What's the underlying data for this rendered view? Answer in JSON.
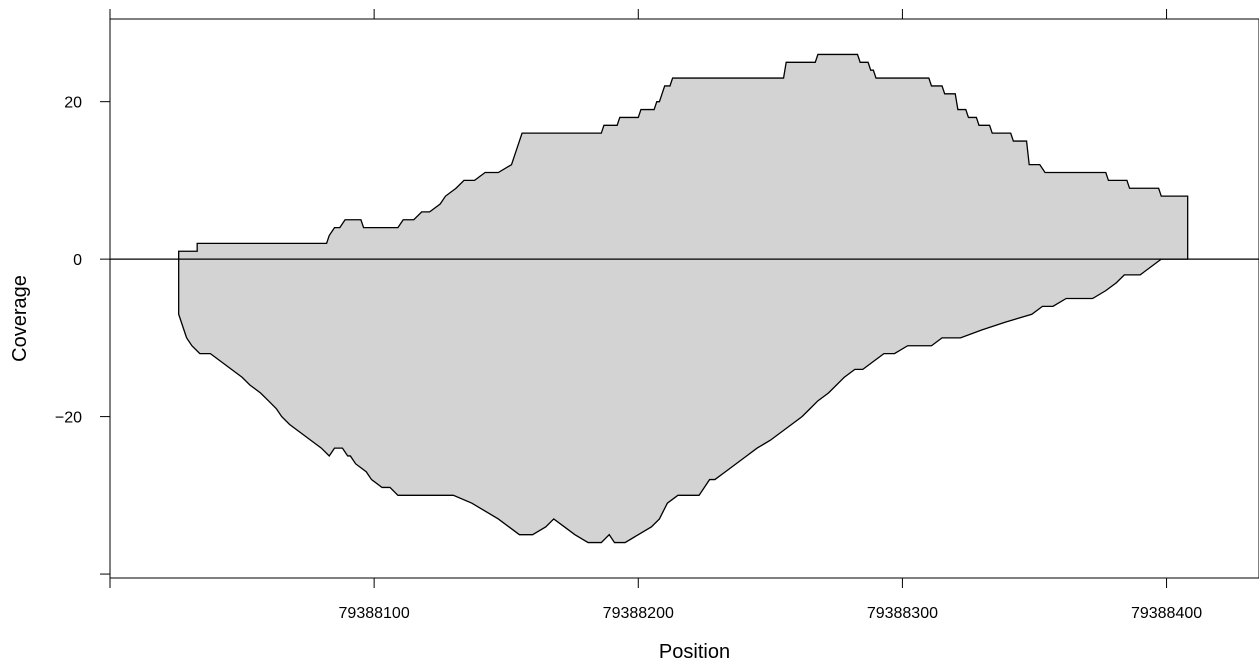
{
  "chart_data": {
    "type": "area",
    "title": "",
    "xlabel": "Position",
    "ylabel": "Coverage",
    "xlim": [
      79388000,
      79388435
    ],
    "ylim": [
      -40.5,
      30.5
    ],
    "x_ticks": [
      79388000,
      79388100,
      79388200,
      79388300,
      79388400
    ],
    "x_tick_labels": [
      "",
      "79388100",
      "79388200",
      "79388300",
      "79388400"
    ],
    "y_ticks": [
      -40,
      -20,
      0,
      20
    ],
    "y_tick_labels": [
      "",
      "−20",
      "0",
      "20"
    ],
    "zero_line": true,
    "grid": false,
    "legend": "none",
    "colors": {
      "fill": "#d3d3d3",
      "stroke": "#000000"
    },
    "series": [
      {
        "x": [
          79388026,
          79388026,
          79388033,
          79388033,
          79388082,
          79388083,
          79388085,
          79388087,
          79388089,
          79388095,
          79388096,
          79388109,
          79388111,
          79388115,
          79388118,
          79388121,
          79388125,
          79388127,
          79388131,
          79388134,
          79388138,
          79388142,
          79388147,
          79388152,
          79388156,
          79388186,
          79388187,
          79388192,
          79388193,
          79388200,
          79388201,
          79388206,
          79388207,
          79388208,
          79388209,
          79388210,
          79388212,
          79388213,
          79388214,
          79388215,
          79388255,
          79388256,
          79388267,
          79388268,
          79388283,
          79388284,
          79388287,
          79388288,
          79388289,
          79388290,
          79388310,
          79388311,
          79388315,
          79388316,
          79388320,
          79388321,
          79388324,
          79388325,
          79388328,
          79388329,
          79388333,
          79388334,
          79388336,
          79388337,
          79388341,
          79388342,
          79388347,
          79388348,
          79388352,
          79388354,
          79388356,
          79388377,
          79388378,
          79388385,
          79388386,
          79388392,
          79388393,
          79388397,
          79388398,
          79388408,
          79388408
        ],
        "top": [
          0,
          1,
          1,
          2,
          2,
          3,
          4,
          4,
          5,
          5,
          4,
          4,
          5,
          5,
          6,
          6,
          7,
          8,
          9,
          10,
          10,
          11,
          11,
          12,
          16,
          16,
          17,
          17,
          18,
          18,
          19,
          19,
          20,
          20,
          21,
          22,
          22,
          23,
          23,
          23,
          23,
          25,
          25,
          26,
          26,
          25,
          25,
          24,
          24,
          23,
          23,
          22,
          22,
          21,
          21,
          19,
          19,
          18,
          18,
          17,
          17,
          16,
          16,
          16,
          16,
          15,
          15,
          12,
          12,
          11,
          11,
          11,
          10,
          10,
          9,
          9,
          9,
          9,
          8,
          8,
          0
        ],
        "bottom_x": [
          79388026,
          79388026,
          79388027,
          79388028,
          79388029,
          79388031,
          79388034,
          79388038,
          79388042,
          79388046,
          79388050,
          79388053,
          79388057,
          79388060,
          79388063,
          79388065,
          79388068,
          79388072,
          79388076,
          79388080,
          79388083,
          79388085,
          79388088,
          79388090,
          79388091,
          79388093,
          79388097,
          79388099,
          79388103,
          79388106,
          79388109,
          79388115,
          79388130,
          79388137,
          79388142,
          79388147,
          79388151,
          79388155,
          79388160,
          79388165,
          79388168,
          79388172,
          79388176,
          79388181,
          79388183,
          79388186,
          79388189,
          79388191,
          79388195,
          79388200,
          79388205,
          79388208,
          79388211,
          79388215,
          79388223,
          79388225,
          79388227,
          79388229,
          79388233,
          79388237,
          79388241,
          79388245,
          79388250,
          79388254,
          79388258,
          79388262,
          79388265,
          79388268,
          79388272,
          79388275,
          79388278,
          79388282,
          79388285,
          79388289,
          79388293,
          79388297,
          79388302,
          79388306,
          79388311,
          79388315,
          79388322,
          79388330,
          79388339,
          79388349,
          79388353,
          79388357,
          79388362,
          79388367,
          79388372,
          79388377,
          79388381,
          79388384,
          79388386,
          79388388,
          79388390,
          79388394,
          79388398,
          79388402,
          79388405,
          79388406,
          79388407,
          79388408,
          79388408
        ],
        "bottom": [
          0,
          -7,
          -8,
          -9,
          -10,
          -11,
          -12,
          -12,
          -13,
          -14,
          -15,
          -16,
          -17,
          -18,
          -19,
          -20,
          -21,
          -22,
          -23,
          -24,
          -25,
          -24,
          -24,
          -25,
          -25,
          -26,
          -27,
          -28,
          -29,
          -29,
          -30,
          -30,
          -30,
          -31,
          -32,
          -33,
          -34,
          -35,
          -35,
          -34,
          -33,
          -34,
          -35,
          -36,
          -36,
          -36,
          -35,
          -36,
          -36,
          -35,
          -34,
          -33,
          -31,
          -30,
          -30,
          -29,
          -28,
          -28,
          -27,
          -26,
          -25,
          -24,
          -23,
          -22,
          -21,
          -20,
          -19,
          -18,
          -17,
          -16,
          -15,
          -14,
          -14,
          -13,
          -12,
          -12,
          -11,
          -11,
          -11,
          -10,
          -10,
          -9,
          -8,
          -7,
          -6,
          -6,
          -5,
          -5,
          -5,
          -4,
          -3,
          -2,
          -2,
          -2,
          -2,
          -1,
          0,
          0,
          0,
          0,
          0,
          0,
          0
        ]
      }
    ]
  }
}
